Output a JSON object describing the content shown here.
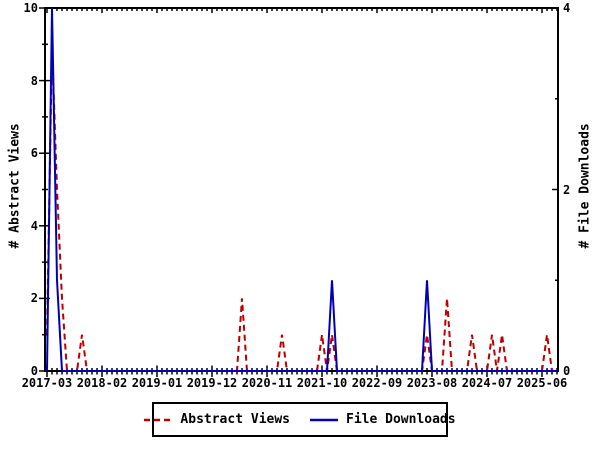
{
  "figure": {
    "background_color": "#ffffff",
    "plot_border_color": "#000000"
  },
  "axes": {
    "left": {
      "title": "# Abstract Views",
      "tick_labels": [
        "0",
        "2",
        "4",
        "6",
        "8",
        "10"
      ],
      "range": [
        0,
        10
      ]
    },
    "right": {
      "title": "# File Downloads",
      "tick_labels": [
        "0",
        "2",
        "4"
      ],
      "range": [
        0,
        4
      ]
    },
    "x": {
      "tick_labels": [
        "2017-03",
        "2018-02",
        "2019-01",
        "2019-12",
        "2020-11",
        "2021-10",
        "2022-09",
        "2023-08",
        "2024-07",
        "2025-06"
      ],
      "months_between_labeled_ticks": 11,
      "minor_tick_unit": "month"
    }
  },
  "legend": {
    "entries": [
      {
        "label": "Abstract Views",
        "color": "#bb0000",
        "line_style": "dashed"
      },
      {
        "label": "File Downloads",
        "color": "#0000bb",
        "line_style": "solid"
      }
    ]
  },
  "chart_data": {
    "type": "line",
    "x_first_month": "2017-03",
    "x_last_month": "2025-09",
    "x_step_months": 1,
    "grid": false,
    "legend_position": "bottom-center-boxed",
    "series": [
      {
        "name": "Abstract Views",
        "axis": "left",
        "color": "#bb0000",
        "dash": "6,4",
        "values": [
          1,
          9,
          5,
          2,
          0,
          0,
          0,
          1,
          0,
          0,
          0,
          0,
          0,
          0,
          0,
          0,
          0,
          0,
          0,
          0,
          0,
          0,
          0,
          0,
          0,
          0,
          0,
          0,
          0,
          0,
          0,
          0,
          0,
          0,
          0,
          0,
          0,
          0,
          0,
          2,
          0,
          0,
          0,
          0,
          0,
          0,
          0,
          1,
          0,
          0,
          0,
          0,
          0,
          0,
          0,
          1,
          0,
          1,
          0,
          0,
          0,
          0,
          0,
          0,
          0,
          0,
          0,
          0,
          0,
          0,
          0,
          0,
          0,
          0,
          0,
          0,
          1,
          0,
          0,
          0,
          2,
          0,
          0,
          0,
          0,
          1,
          0,
          0,
          0,
          1,
          0,
          1,
          0,
          0,
          0,
          0,
          0,
          0,
          0,
          0,
          1,
          0,
          0
        ]
      },
      {
        "name": "File Downloads",
        "axis": "right",
        "color": "#0000bb",
        "dash": null,
        "values": [
          0,
          4,
          1,
          0,
          0,
          0,
          0,
          0,
          0,
          0,
          0,
          0,
          0,
          0,
          0,
          0,
          0,
          0,
          0,
          0,
          0,
          0,
          0,
          0,
          0,
          0,
          0,
          0,
          0,
          0,
          0,
          0,
          0,
          0,
          0,
          0,
          0,
          0,
          0,
          0,
          0,
          0,
          0,
          0,
          0,
          0,
          0,
          0,
          0,
          0,
          0,
          0,
          0,
          0,
          0,
          0,
          0,
          1,
          0,
          0,
          0,
          0,
          0,
          0,
          0,
          0,
          0,
          0,
          0,
          0,
          0,
          0,
          0,
          0,
          0,
          0,
          1,
          0,
          0,
          0,
          0,
          0,
          0,
          0,
          0,
          0,
          0,
          0,
          0,
          0,
          0,
          0,
          0,
          0,
          0,
          0,
          0,
          0,
          0,
          0,
          0,
          0,
          0
        ]
      }
    ]
  }
}
